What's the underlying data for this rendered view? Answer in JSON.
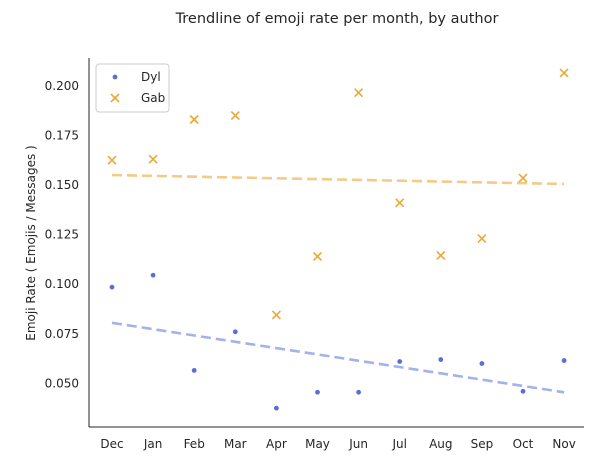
{
  "chart_data": {
    "type": "scatter",
    "title": "Trendline of emoji rate per month, by author",
    "xlabel": "",
    "ylabel": "Emoji Rate ( Emojis / Messages )",
    "categories": [
      "Dec",
      "Jan",
      "Feb",
      "Mar",
      "Apr",
      "May",
      "Jun",
      "Jul",
      "Aug",
      "Sep",
      "Oct",
      "Nov"
    ],
    "ylim": [
      0.028,
      0.214
    ],
    "yticks": [
      0.05,
      0.075,
      0.1,
      0.125,
      0.15,
      0.175,
      0.2
    ],
    "ytick_labels": [
      "0.050",
      "0.075",
      "0.100",
      "0.125",
      "0.150",
      "0.175",
      "0.200"
    ],
    "grid": false,
    "legend_position": "top-left",
    "series": [
      {
        "name": "Dyl",
        "marker": "circle",
        "color": "#5a6fd6",
        "values": [
          0.0985,
          0.1045,
          0.0565,
          0.076,
          0.0375,
          0.0455,
          0.0455,
          0.061,
          0.062,
          0.06,
          0.046,
          0.0615
        ],
        "trendline": {
          "color": "#a4b2ec",
          "start": 0.0805,
          "end": 0.0455
        }
      },
      {
        "name": "Gab",
        "marker": "x",
        "color": "#eca835",
        "values": [
          0.1625,
          0.163,
          0.183,
          0.185,
          0.0845,
          0.114,
          0.1965,
          0.141,
          0.1145,
          0.123,
          0.1535,
          0.2065
        ],
        "trendline": {
          "color": "#f4cb86",
          "start": 0.155,
          "end": 0.1505
        }
      }
    ]
  }
}
